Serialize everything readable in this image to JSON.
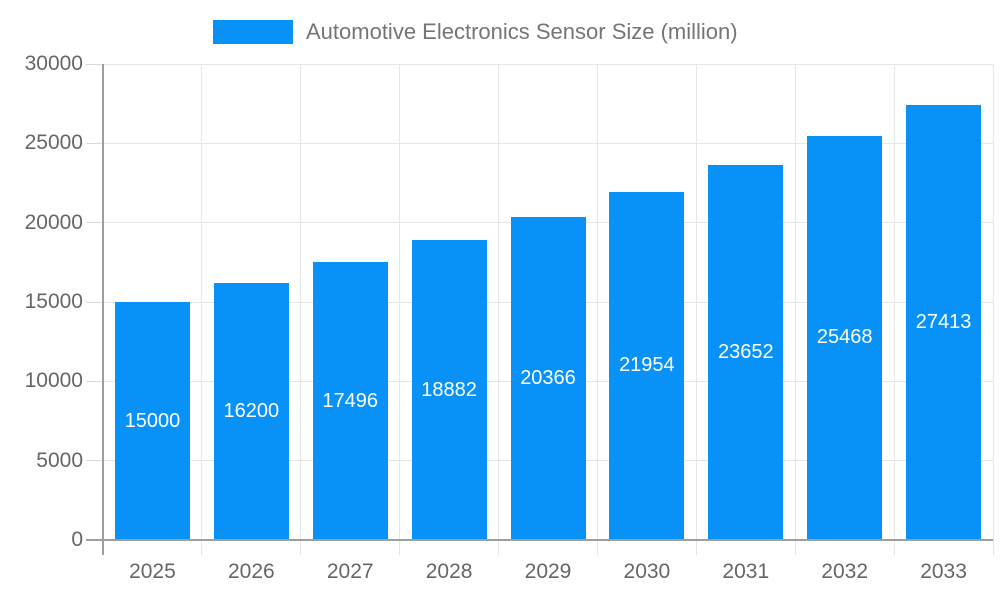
{
  "legend": {
    "label": "Automotive Electronics Sensor Size (million)"
  },
  "chart_data": {
    "type": "bar",
    "title": "Automotive Electronics Sensor Size (million)",
    "series_name": "Automotive Electronics Sensor Size (million)",
    "categories": [
      "2025",
      "2026",
      "2027",
      "2028",
      "2029",
      "2030",
      "2031",
      "2032",
      "2033"
    ],
    "values": [
      15000,
      16200,
      17496,
      18882,
      20366,
      21954,
      23652,
      25468,
      27413
    ],
    "xlabel": "",
    "ylabel": "",
    "ylim": [
      0,
      30000
    ],
    "yticks": [
      0,
      5000,
      10000,
      15000,
      20000,
      25000,
      30000
    ],
    "grid": true,
    "legend_position": "top",
    "value_labels": "inside-center",
    "colors": {
      "bar": "#0892f8",
      "value_label": "#ffffff",
      "axis_line": "#9e9e9e",
      "gridline": "#e6e6e6",
      "tick": "#d9d9d9",
      "tick_label": "#666666",
      "legend_text": "#757575"
    }
  }
}
